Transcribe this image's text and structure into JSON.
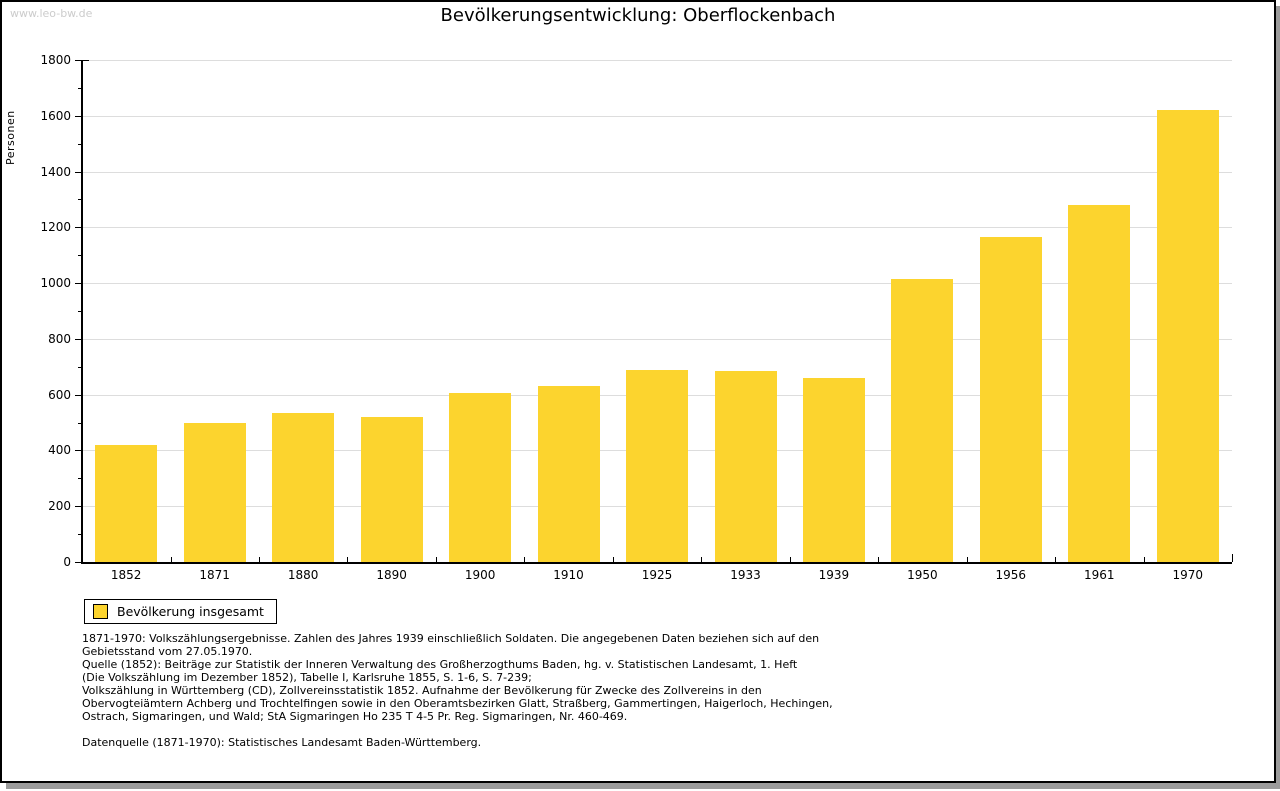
{
  "watermark": "www.leo-bw.de",
  "chart_data": {
    "type": "bar",
    "title": "Bevölkerungsentwicklung: Oberflockenbach",
    "xlabel": "",
    "ylabel": "Personen",
    "categories": [
      "1852",
      "1871",
      "1880",
      "1890",
      "1900",
      "1910",
      "1925",
      "1933",
      "1939",
      "1950",
      "1956",
      "1961",
      "1970"
    ],
    "values": [
      420,
      500,
      535,
      520,
      605,
      630,
      690,
      685,
      660,
      1015,
      1165,
      1280,
      1620
    ],
    "series_name": "Bevölkerung insgesamt",
    "ylim": [
      0,
      1800
    ],
    "ytick_major_step": 200,
    "ytick_minor_step": 100,
    "grid": "horizontal-major",
    "legend_position": "bottom-left",
    "bar_color": "#fcd42e"
  },
  "legend": {
    "label": "Bevölkerung insgesamt"
  },
  "colors": {
    "bar": "#fcd42e",
    "grid": "#dddddd",
    "axis": "#000000",
    "watermark": "#cccccc",
    "shadow": "#9b9b9b",
    "background": "#ffffff"
  },
  "footnotes": {
    "lines": [
      "1871-1970: Volkszählungsergebnisse. Zahlen des Jahres 1939 einschließlich Soldaten. Die angegebenen Daten beziehen sich auf den",
      "Gebietsstand vom 27.05.1970.",
      "Quelle (1852): Beiträge zur Statistik der Inneren Verwaltung des Großherzogthums Baden, hg. v. Statistischen Landesamt, 1. Heft",
      "(Die Volkszählung im Dezember 1852), Tabelle I, Karlsruhe 1855, S. 1-6, S. 7-239;",
      "Volkszählung in Württemberg (CD), Zollvereinsstatistik 1852. Aufnahme der Bevölkerung für Zwecke des Zollvereins in den",
      "Obervogteiämtern Achberg und Trochtelfingen sowie in den Oberamtsbezirken Glatt, Straßberg, Gammertingen, Haigerloch, Hechingen,",
      "Ostrach, Sigmaringen, und Wald; StA Sigmaringen Ho 235 T 4-5 Pr. Reg. Sigmaringen, Nr. 460-469."
    ],
    "datasource": "Datenquelle (1871-1970): Statistisches Landesamt Baden-Württemberg."
  }
}
